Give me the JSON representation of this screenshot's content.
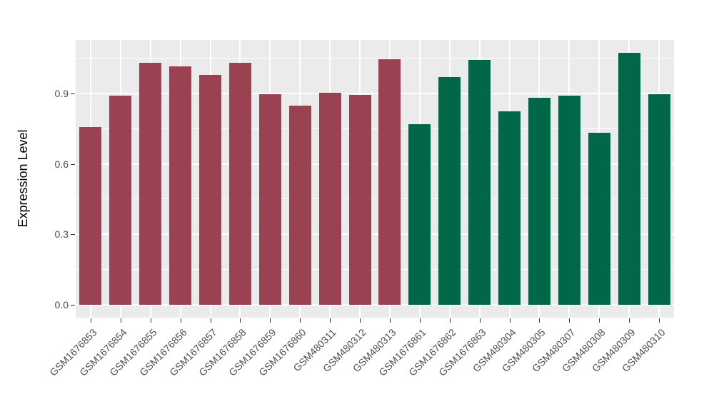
{
  "chart_data": {
    "type": "bar",
    "title": "",
    "xlabel": "",
    "ylabel": "Expression Level",
    "legend_position": "none",
    "grid": true,
    "y_ticks": [
      0.0,
      0.3,
      0.6,
      0.9
    ],
    "y_tick_labels": [
      "0.0",
      "0.3",
      "0.6",
      "0.9"
    ],
    "y_minor_ticks": [
      0.15,
      0.45,
      0.75,
      1.05
    ],
    "ylim": [
      -0.054,
      1.128
    ],
    "categories": [
      "GSM1676853",
      "GSM1676854",
      "GSM1676855",
      "GSM1676856",
      "GSM1676857",
      "GSM1676858",
      "GSM1676859",
      "GSM1676860",
      "GSM480311",
      "GSM480312",
      "GSM480313",
      "GSM1676861",
      "GSM1676862",
      "GSM1676863",
      "GSM480304",
      "GSM480305",
      "GSM480307",
      "GSM480308",
      "GSM480309",
      "GSM480310"
    ],
    "values": [
      0.756,
      0.892,
      1.031,
      1.016,
      0.98,
      1.031,
      0.898,
      0.848,
      0.903,
      0.895,
      1.046,
      0.768,
      0.97,
      1.043,
      0.824,
      0.882,
      0.89,
      0.733,
      1.072,
      0.898
    ],
    "bar_color_groups": [
      "red",
      "red",
      "red",
      "red",
      "red",
      "red",
      "red",
      "red",
      "red",
      "red",
      "red",
      "green",
      "green",
      "green",
      "green",
      "green",
      "green",
      "green",
      "green",
      "green"
    ],
    "colors": {
      "red": "#9A4152",
      "green": "#016748",
      "panel_background": "#EBEBEB",
      "gridline": "#FFFFFF",
      "tick_text": "#4D4D4D",
      "axis_title": "#000000",
      "tick_mark": "#333333"
    }
  }
}
